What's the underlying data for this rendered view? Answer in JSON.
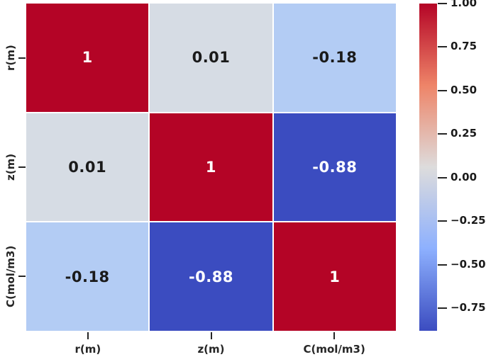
{
  "figure": {
    "background": "#ffffff",
    "text_color": "#262626"
  },
  "chart_data": {
    "type": "heatmap",
    "title": "",
    "colormap": "coolwarm",
    "categories": [
      "r(m)",
      "z(m)",
      "C(mol/m3)"
    ],
    "matrix": [
      [
        1,
        0.01,
        -0.18
      ],
      [
        0.01,
        1,
        -0.88
      ],
      [
        -0.18,
        -0.88,
        1
      ]
    ],
    "cell_labels": [
      [
        "1",
        "0.01",
        "-0.18"
      ],
      [
        "0.01",
        "1",
        "-0.88"
      ],
      [
        "-0.18",
        "-0.88",
        "1"
      ]
    ],
    "cell_colors": [
      [
        "#b40426",
        "#d6dce4",
        "#b3ccf4"
      ],
      [
        "#d6dce4",
        "#b40426",
        "#3b4cc0"
      ],
      [
        "#b3ccf4",
        "#3b4cc0",
        "#b40426"
      ]
    ],
    "cell_text_colors": [
      [
        "#ffffff",
        "#1a1a1a",
        "#1a1a1a"
      ],
      [
        "#1a1a1a",
        "#ffffff",
        "#ffffff"
      ],
      [
        "#1a1a1a",
        "#ffffff",
        "#ffffff"
      ]
    ],
    "grid_gap_color": "#ffffff",
    "colorbar": {
      "vmin": -0.88,
      "vmax": 1.0,
      "gradient_stops_top_to_bottom": [
        "#b40426",
        "#ee8468",
        "#dddcdc",
        "#8db0fe",
        "#3b4cc0"
      ],
      "ticks": [
        {
          "value": 1.0,
          "label": "1.00"
        },
        {
          "value": 0.75,
          "label": "0.75"
        },
        {
          "value": 0.5,
          "label": "0.50"
        },
        {
          "value": 0.25,
          "label": "0.25"
        },
        {
          "value": 0.0,
          "label": "0.00"
        },
        {
          "value": -0.25,
          "label": "−0.25"
        },
        {
          "value": -0.5,
          "label": "−0.50"
        },
        {
          "value": -0.75,
          "label": "−0.75"
        }
      ]
    }
  }
}
